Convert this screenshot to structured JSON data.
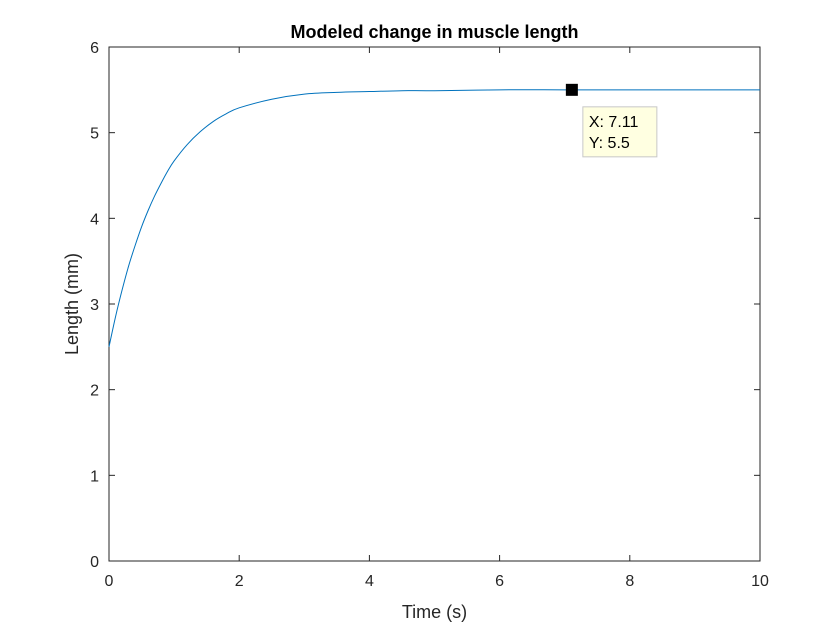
{
  "chart_data": {
    "type": "line",
    "title": "Modeled change in muscle length",
    "xlabel": "Time (s)",
    "ylabel": "Length (mm)",
    "xlim": [
      0,
      10
    ],
    "ylim": [
      0,
      6
    ],
    "xticks": [
      0,
      2,
      4,
      6,
      8,
      10
    ],
    "yticks": [
      0,
      1,
      2,
      3,
      4,
      5,
      6
    ],
    "xtick_labels": [
      "0",
      "2",
      "4",
      "6",
      "8",
      "10"
    ],
    "ytick_labels": [
      "0",
      "1",
      "2",
      "3",
      "4",
      "5",
      "6"
    ],
    "grid": false,
    "series": [
      {
        "color": "#0072BD",
        "x": [
          0,
          0.1,
          0.2,
          0.3,
          0.4,
          0.5,
          0.6,
          0.7,
          0.8,
          0.9,
          1.0,
          1.2,
          1.4,
          1.6,
          1.8,
          2.0,
          2.5,
          3.0,
          3.5,
          4.0,
          4.5,
          5.0,
          6.0,
          7.0,
          8.0,
          9.0,
          10.0
        ],
        "y": [
          2.5,
          2.85,
          3.16,
          3.44,
          3.68,
          3.9,
          4.09,
          4.26,
          4.41,
          4.55,
          4.67,
          4.86,
          5.01,
          5.13,
          5.22,
          5.29,
          5.39,
          5.45,
          5.47,
          5.48,
          5.49,
          5.49,
          5.5,
          5.5,
          5.5,
          5.5,
          5.5
        ]
      }
    ],
    "datatip": {
      "x": 7.11,
      "y": 5.5,
      "x_text": "X: 7.11",
      "y_text": "Y: 5.5",
      "marker_color": "#000000",
      "box_fill": "#FFFFE1",
      "box_border": "#C8C8C8"
    }
  }
}
